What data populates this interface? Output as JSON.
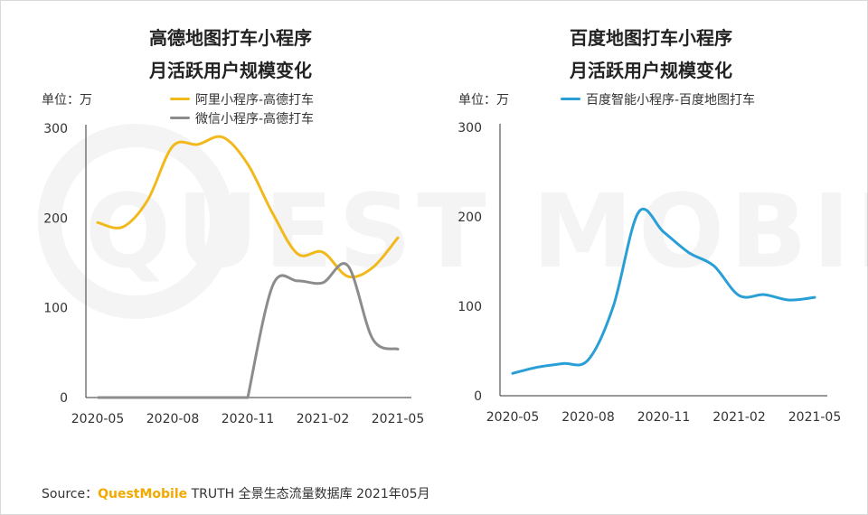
{
  "watermark": "QUEST MOBILE",
  "source": {
    "label": "Source：",
    "brand": "QuestMobile",
    "text": " TRUTH 全景生态流量数据库 2021年05月",
    "brand_color": "#f2a900"
  },
  "chart_data": [
    {
      "type": "line",
      "title_line1": "高德地图打车小程序",
      "title_line2": "月活跃用户规模变化",
      "unit_label": "单位：万",
      "ylim": [
        0,
        300
      ],
      "yticks": [
        "0",
        "100",
        "200",
        "300"
      ],
      "x_tick_labels": [
        "2020-05",
        "2020-08",
        "2020-11",
        "2021-02",
        "2021-05"
      ],
      "legend_position": "top",
      "series": [
        {
          "name": "阿里小程序-高德打车",
          "color": "#f2b91c",
          "x": [
            "2020-05",
            "2020-06",
            "2020-07",
            "2020-08",
            "2020-09",
            "2020-10",
            "2020-11",
            "2020-12",
            "2021-01",
            "2021-02",
            "2021-03",
            "2021-04",
            "2021-05"
          ],
          "values": [
            195,
            190,
            220,
            280,
            282,
            290,
            260,
            205,
            160,
            162,
            135,
            145,
            178
          ]
        },
        {
          "name": "微信小程序-高德打车",
          "color": "#8c8c8c",
          "x": [
            "2020-05",
            "2020-06",
            "2020-07",
            "2020-08",
            "2020-09",
            "2020-10",
            "2020-11",
            "2020-12",
            "2021-01",
            "2021-02",
            "2021-03",
            "2021-04",
            "2021-05"
          ],
          "values": [
            0,
            0,
            0,
            0,
            0,
            0,
            0,
            125,
            130,
            128,
            147,
            65,
            54
          ]
        }
      ]
    },
    {
      "type": "line",
      "title_line1": "百度地图打车小程序",
      "title_line2": "月活跃用户规模变化",
      "unit_label": "单位：万",
      "ylim": [
        0,
        300
      ],
      "yticks": [
        "0",
        "100",
        "200",
        "300"
      ],
      "x_tick_labels": [
        "2020-05",
        "2020-08",
        "2020-11",
        "2021-02",
        "2021-05"
      ],
      "legend_position": "top",
      "series": [
        {
          "name": "百度智能小程序-百度地图打车",
          "color": "#2a9fd6",
          "x": [
            "2020-05",
            "2020-06",
            "2020-07",
            "2020-08",
            "2020-09",
            "2020-10",
            "2020-11",
            "2020-12",
            "2021-01",
            "2021-02",
            "2021-03",
            "2021-04",
            "2021-05"
          ],
          "values": [
            25,
            32,
            36,
            40,
            100,
            205,
            183,
            160,
            145,
            112,
            113,
            107,
            110
          ]
        }
      ]
    }
  ]
}
